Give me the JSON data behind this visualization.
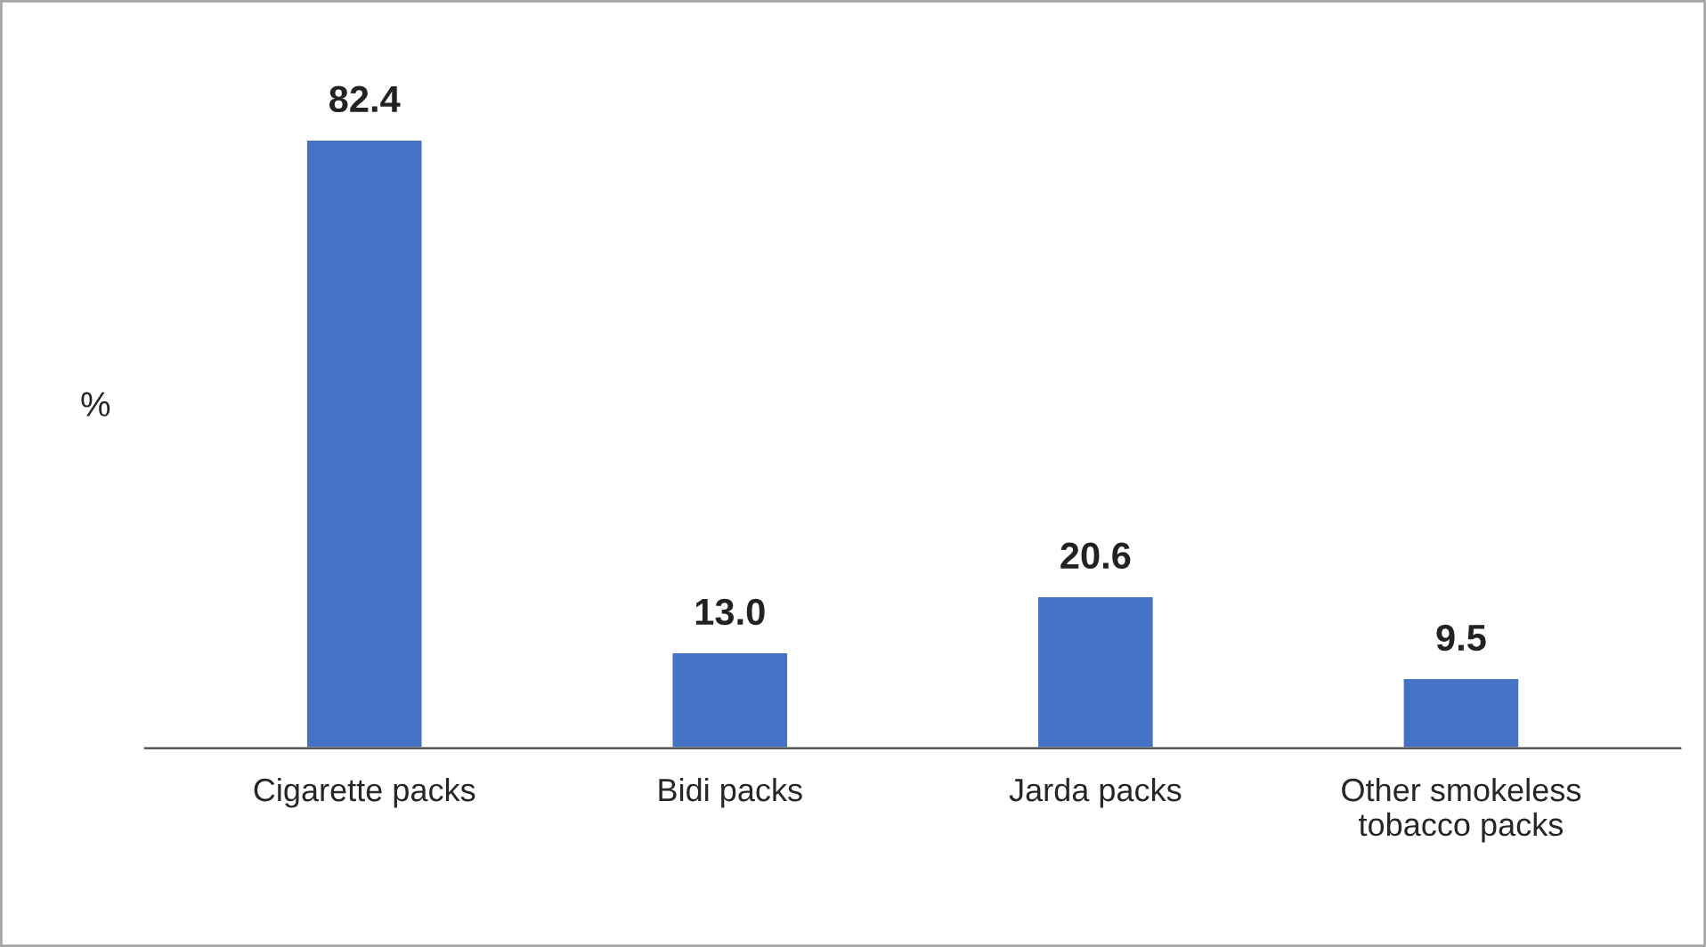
{
  "chart_data": {
    "type": "bar",
    "ylabel": "%",
    "categories": [
      "Cigarette packs",
      "Bidi packs",
      "Jarda packs",
      "Other smokeless\ntobacco packs"
    ],
    "values": [
      82.4,
      13.0,
      20.6,
      9.5
    ],
    "color": "#4472c4",
    "value_labels": [
      "82.4",
      "13.0",
      "20.6",
      "9.5"
    ],
    "grid": false,
    "legend": false
  }
}
